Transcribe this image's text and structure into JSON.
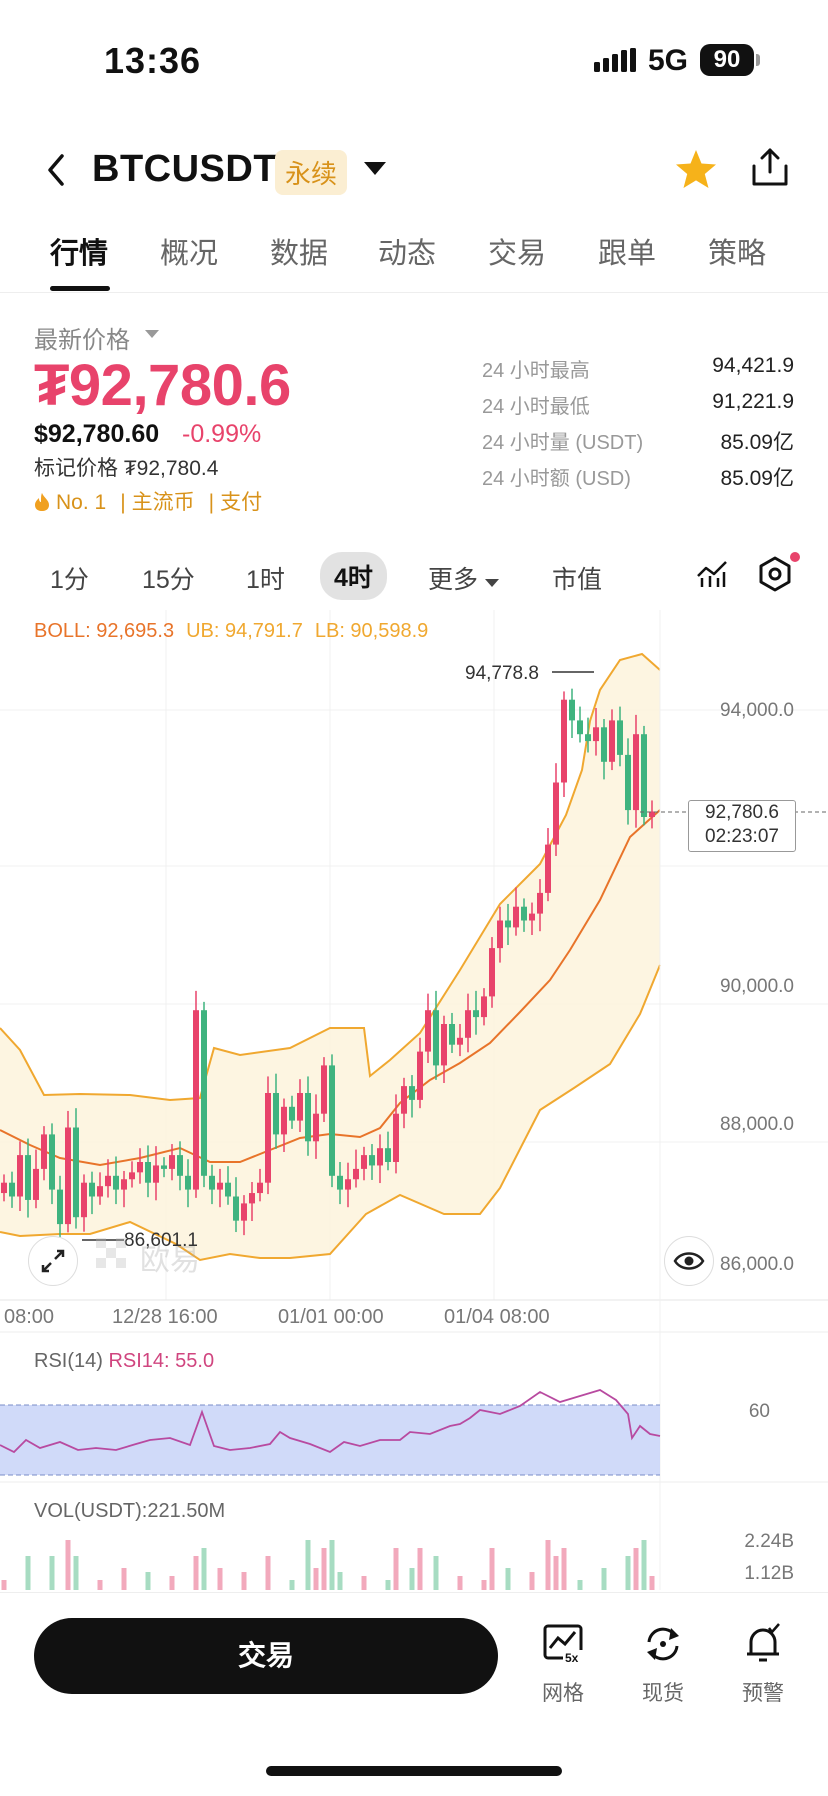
{
  "status_bar": {
    "time": "13:36",
    "network": "5G",
    "battery": "90"
  },
  "header": {
    "symbol": "BTCUSDT",
    "badge": "永续"
  },
  "tabs": [
    "行情",
    "概况",
    "数据",
    "动态",
    "交易",
    "跟单",
    "策略"
  ],
  "price_panel": {
    "latest_label": "最新价格",
    "price": "₮92,780.6",
    "usd_price": "$92,780.60",
    "change": "-0.99%",
    "mark_price": "标记价格 ₮92,780.4",
    "tags": [
      "No. 1",
      "主流币",
      "支付"
    ],
    "stats": [
      {
        "label": "24 小时最高",
        "value": "94,421.9"
      },
      {
        "label": "24 小时最低",
        "value": "91,221.9"
      },
      {
        "label": "24 小时量 (USDT)",
        "value": "85.09亿"
      },
      {
        "label": "24 小时额 (USD)",
        "value": "85.09亿"
      }
    ]
  },
  "intervals": [
    "1分",
    "15分",
    "1时",
    "4时",
    "更多",
    "市值"
  ],
  "active_interval": "4时",
  "chart": {
    "boll": "BOLL: 92,695.3",
    "ub": "UB: 94,791.7",
    "lb": "LB: 90,598.9",
    "high_marker": "94,778.8",
    "low_marker": "86,601.1",
    "current_price": "92,780.6",
    "countdown": "02:23:07",
    "y_ticks": [
      "94,000.0",
      "90,000.0",
      "88,000.0",
      "86,000.0"
    ],
    "x_ticks": [
      "08:00",
      "12/28 16:00",
      "01/01 00:00",
      "01/04 08:00"
    ],
    "watermark": "欧易",
    "colors": {
      "up": "#e8436b",
      "down": "#3fb37f",
      "boll_mid": "#e8742a",
      "boll_band": "#f0a830"
    }
  },
  "rsi": {
    "label": "RSI(14)",
    "value": "RSI14: 55.0",
    "tick": "60"
  },
  "volume": {
    "label": "VOL(USDT):221.50M",
    "ticks": [
      "2.24B",
      "1.12B"
    ]
  },
  "bottom_bar": {
    "trade": "交易",
    "actions": [
      {
        "label": "网格",
        "icon": "grid-bot-icon"
      },
      {
        "label": "现货",
        "icon": "spot-swap-icon"
      },
      {
        "label": "预警",
        "icon": "alert-bell-icon"
      }
    ]
  },
  "chart_data": {
    "type": "candlestick",
    "indicators": [
      "BOLL",
      "RSI(14)",
      "VOL(USDT)"
    ],
    "x_ticks": [
      "08:00",
      "12/28 16:00",
      "01/01 00:00",
      "01/04 08:00"
    ],
    "y_ticks": [
      94000.0,
      90000.0,
      88000.0,
      86000.0
    ],
    "ylim": [
      85700,
      95700
    ],
    "close": [
      87400,
      87200,
      87800,
      87150,
      87600,
      88100,
      87300,
      86800,
      88200,
      86900,
      87400,
      87200,
      87350,
      87500,
      87300,
      87450,
      87550,
      87700,
      87400,
      87650,
      87600,
      87800,
      87500,
      87300,
      89900,
      87500,
      87300,
      87400,
      87200,
      86850,
      87100,
      87250,
      87400,
      88700,
      88100,
      88500,
      88300,
      88700,
      88000,
      88400,
      89100,
      87500,
      87300,
      87450,
      87600,
      87800,
      87650,
      87900,
      87700,
      88400,
      88800,
      88600,
      89300,
      89900,
      89100,
      89700,
      89400,
      89500,
      89900,
      89800,
      90100,
      90800,
      91200,
      91100,
      91400,
      91200,
      91300,
      91600,
      92300,
      93200,
      94400,
      94100,
      93900,
      93800,
      94000,
      93500,
      94100,
      93600,
      92800,
      93900,
      92700,
      92780
    ],
    "rsi14": 55.0,
    "volume_ticks": [
      "2.24B",
      "1.12B"
    ],
    "last_price": 92780.6
  }
}
